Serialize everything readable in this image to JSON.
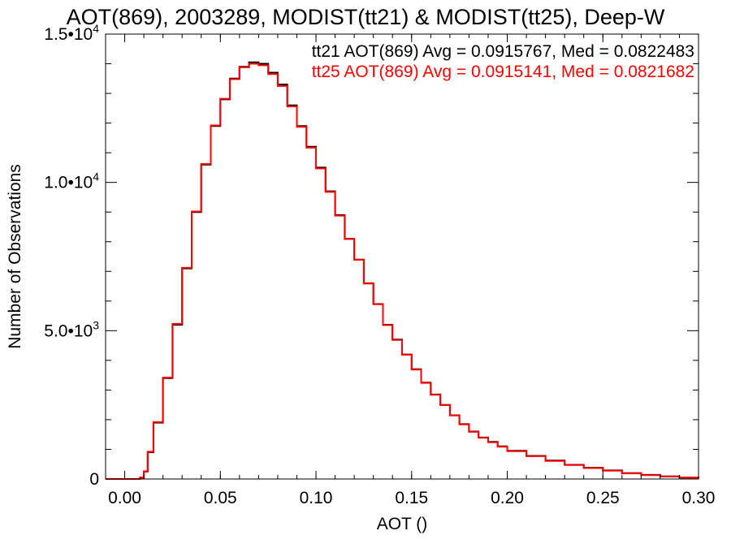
{
  "chart_data": {
    "type": "line",
    "title": "AOT(869), 2003289, MODIST(tt21) & MODIST(tt25), Deep-W",
    "xlabel": "AOT ()",
    "ylabel": "Number of Observations",
    "xlim": [
      -0.01,
      0.3
    ],
    "ylim": [
      0,
      15000
    ],
    "grid": false,
    "x_ticks": [
      {
        "value": 0.0,
        "label": "0.00"
      },
      {
        "value": 0.05,
        "label": "0.05"
      },
      {
        "value": 0.1,
        "label": "0.10"
      },
      {
        "value": 0.15,
        "label": "0.15"
      },
      {
        "value": 0.2,
        "label": "0.20"
      },
      {
        "value": 0.25,
        "label": "0.25"
      },
      {
        "value": 0.3,
        "label": "0.30"
      }
    ],
    "y_ticks": [
      {
        "value": 0,
        "mantissa": "0",
        "exponent": ""
      },
      {
        "value": 5000,
        "mantissa": "5.0•10",
        "exponent": "3"
      },
      {
        "value": 10000,
        "mantissa": "1.0•10",
        "exponent": "4"
      },
      {
        "value": 15000,
        "mantissa": "1.5•10",
        "exponent": "4"
      }
    ],
    "annotations": [
      {
        "text": "tt21 AOT(869) Avg = 0.0915767, Med = 0.0822483",
        "color": "#000000"
      },
      {
        "text": "tt25 AOT(869) Avg = 0.0915141, Med = 0.0821682",
        "color": "#ff0000"
      }
    ],
    "series": [
      {
        "color": "#000000",
        "x": [
          -0.01,
          0.0,
          0.005,
          0.008,
          0.01,
          0.012,
          0.015,
          0.02,
          0.025,
          0.03,
          0.035,
          0.04,
          0.045,
          0.05,
          0.055,
          0.06,
          0.065,
          0.07,
          0.075,
          0.08,
          0.085,
          0.09,
          0.095,
          0.1,
          0.105,
          0.11,
          0.115,
          0.12,
          0.125,
          0.13,
          0.135,
          0.14,
          0.145,
          0.15,
          0.155,
          0.16,
          0.165,
          0.17,
          0.175,
          0.18,
          0.185,
          0.19,
          0.195,
          0.2,
          0.21,
          0.22,
          0.23,
          0.24,
          0.25,
          0.26,
          0.27,
          0.28,
          0.29,
          0.3
        ],
        "y": [
          0,
          0,
          0,
          50,
          250,
          900,
          1900,
          3400,
          5200,
          7100,
          9000,
          10600,
          11900,
          12800,
          13500,
          13900,
          14050,
          14000,
          13700,
          13300,
          12600,
          11900,
          11200,
          10500,
          9700,
          8900,
          8100,
          7400,
          6600,
          5900,
          5200,
          4700,
          4200,
          3700,
          3250,
          2850,
          2500,
          2150,
          1850,
          1600,
          1400,
          1250,
          1100,
          950,
          780,
          620,
          480,
          380,
          290,
          200,
          140,
          90,
          50,
          20
        ]
      },
      {
        "color": "#ff0000",
        "x": [
          -0.01,
          0.0,
          0.005,
          0.008,
          0.01,
          0.012,
          0.015,
          0.02,
          0.025,
          0.03,
          0.035,
          0.04,
          0.045,
          0.05,
          0.055,
          0.06,
          0.065,
          0.07,
          0.075,
          0.08,
          0.085,
          0.09,
          0.095,
          0.1,
          0.105,
          0.11,
          0.115,
          0.12,
          0.125,
          0.13,
          0.135,
          0.14,
          0.145,
          0.15,
          0.155,
          0.16,
          0.165,
          0.17,
          0.175,
          0.18,
          0.185,
          0.19,
          0.195,
          0.2,
          0.21,
          0.22,
          0.23,
          0.24,
          0.25,
          0.26,
          0.27,
          0.28,
          0.29,
          0.3
        ],
        "y": [
          0,
          0,
          0,
          50,
          260,
          920,
          1920,
          3420,
          5230,
          7120,
          9020,
          10620,
          11920,
          12820,
          13480,
          13880,
          14000,
          13950,
          13650,
          13250,
          12560,
          11870,
          11170,
          10470,
          9680,
          8880,
          8090,
          7390,
          6590,
          5890,
          5190,
          4690,
          4190,
          3690,
          3240,
          2840,
          2490,
          2140,
          1840,
          1590,
          1390,
          1240,
          1090,
          940,
          770,
          610,
          470,
          370,
          280,
          190,
          130,
          85,
          45,
          18
        ]
      }
    ]
  }
}
